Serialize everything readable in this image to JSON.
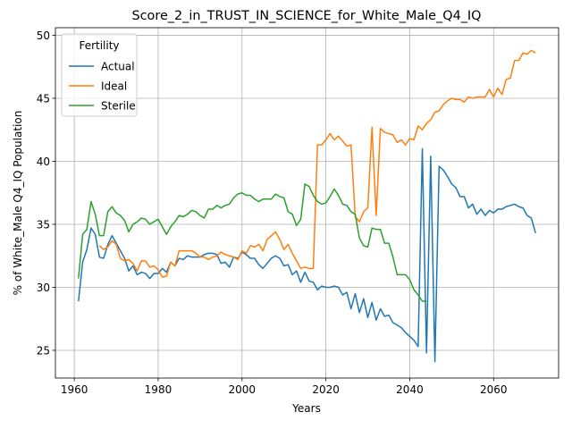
{
  "chart_data": {
    "type": "line",
    "title": "Score_2_in_TRUST_IN_SCIENCE_for_White_Male_Q4_IQ",
    "xlabel": "Years",
    "ylabel": "% of White_Male Q4_IQ Population",
    "legend_title": "Fertility",
    "legend": "upper left",
    "grid": true,
    "xlim": [
      1955.5,
      2075.5
    ],
    "xticks": [
      1960,
      1980,
      2000,
      2020,
      2040,
      2060
    ],
    "ylim": [
      22.8,
      50.6
    ],
    "yticks": [
      25,
      30,
      35,
      40,
      45,
      50
    ],
    "x": [
      1961,
      1962,
      1963,
      1964,
      1965,
      1966,
      1967,
      1968,
      1969,
      1970,
      1971,
      1972,
      1973,
      1974,
      1975,
      1976,
      1977,
      1978,
      1979,
      1980,
      1981,
      1982,
      1983,
      1984,
      1985,
      1986,
      1987,
      1988,
      1989,
      1990,
      1991,
      1992,
      1993,
      1994,
      1995,
      1996,
      1997,
      1998,
      1999,
      2000,
      2001,
      2002,
      2003,
      2004,
      2005,
      2006,
      2007,
      2008,
      2009,
      2010,
      2011,
      2012,
      2013,
      2014,
      2015,
      2016,
      2017,
      2018,
      2019,
      2020,
      2021,
      2022,
      2023,
      2024,
      2025,
      2026,
      2027,
      2028,
      2029,
      2030,
      2031,
      2032,
      2033,
      2034,
      2035,
      2036,
      2037,
      2038,
      2039,
      2040,
      2041,
      2042,
      2043,
      2044,
      2045,
      2046,
      2047,
      2048,
      2049,
      2050,
      2051,
      2052,
      2053,
      2054,
      2055,
      2056,
      2057,
      2058,
      2059,
      2060,
      2061,
      2062,
      2063,
      2064,
      2065,
      2066,
      2067,
      2068,
      2069,
      2070
    ],
    "series": [
      {
        "name": "Actual",
        "color": "#1f77b4",
        "values": [
          28.9,
          32.0,
          33.0,
          34.7,
          34.2,
          32.4,
          32.3,
          33.4,
          34.1,
          33.5,
          32.9,
          32.3,
          31.3,
          31.7,
          31.0,
          31.2,
          31.1,
          30.7,
          31.1,
          31.1,
          31.5,
          31.2,
          32.0,
          31.7,
          32.3,
          32.2,
          32.5,
          32.4,
          32.4,
          32.4,
          32.6,
          32.7,
          32.7,
          32.6,
          31.9,
          32.0,
          31.6,
          32.4,
          32.3,
          32.8,
          32.6,
          32.3,
          32.3,
          31.8,
          31.5,
          31.9,
          32.3,
          32.5,
          32.3,
          31.7,
          31.8,
          31.0,
          31.3,
          30.4,
          31.2,
          30.5,
          30.4,
          29.8,
          30.1,
          30.0,
          30.0,
          30.1,
          30.0,
          29.4,
          29.6,
          28.3,
          29.5,
          28.0,
          29.1,
          27.6,
          28.8,
          27.4,
          28.3,
          27.7,
          27.8,
          27.2,
          27.0,
          26.8,
          26.4,
          26.1,
          25.8,
          25.3,
          41.0,
          24.8,
          40.4,
          24.1,
          39.6,
          39.3,
          38.8,
          38.2,
          37.9,
          37.2,
          37.2,
          36.3,
          36.6,
          35.8,
          36.2,
          35.7,
          36.1,
          35.9,
          36.2,
          36.2,
          36.4,
          36.5,
          36.6,
          36.4,
          36.3,
          35.7,
          35.5,
          34.3
        ]
      },
      {
        "name": "Ideal",
        "color": "#ff7f0e",
        "values": [
          null,
          null,
          null,
          null,
          null,
          33.3,
          33.0,
          33.2,
          33.7,
          33.4,
          32.3,
          32.1,
          32.2,
          31.9,
          31.3,
          32.1,
          32.1,
          31.6,
          31.7,
          31.4,
          30.8,
          30.9,
          32.0,
          31.7,
          32.9,
          32.9,
          32.9,
          32.9,
          32.7,
          32.4,
          32.4,
          32.2,
          32.4,
          32.5,
          32.8,
          32.6,
          32.5,
          32.4,
          32.2,
          32.9,
          32.7,
          33.3,
          33.2,
          33.4,
          32.9,
          33.8,
          34.1,
          34.4,
          33.8,
          33.0,
          33.4,
          32.7,
          32.1,
          31.5,
          31.6,
          31.5,
          31.5,
          41.3,
          41.3,
          41.7,
          42.2,
          41.7,
          42.0,
          41.6,
          41.2,
          41.3,
          35.6,
          35.2,
          36.0,
          36.3,
          42.7,
          35.7,
          42.6,
          42.3,
          42.2,
          42.1,
          41.5,
          41.7,
          41.3,
          41.8,
          41.7,
          42.8,
          42.5,
          43.0,
          43.3,
          43.9,
          44.0,
          44.5,
          44.8,
          45.0,
          44.9,
          44.9,
          44.7,
          45.1,
          45.0,
          45.1,
          45.1,
          45.1,
          45.7,
          45.1,
          45.8,
          45.3,
          46.5,
          46.6,
          48.0,
          48.0,
          48.6,
          48.5,
          48.8,
          48.6
        ]
      },
      {
        "name": "Sterile",
        "color": "#2ca02c",
        "values": [
          30.7,
          34.2,
          34.6,
          36.8,
          35.8,
          34.1,
          34.1,
          36.0,
          36.4,
          35.9,
          35.7,
          35.3,
          34.4,
          35.0,
          35.2,
          35.5,
          35.4,
          35.0,
          35.2,
          35.4,
          34.8,
          34.2,
          34.8,
          35.2,
          35.7,
          35.6,
          35.8,
          36.1,
          36.0,
          35.7,
          35.5,
          36.2,
          36.2,
          36.5,
          36.3,
          36.5,
          36.6,
          37.1,
          37.4,
          37.5,
          37.3,
          37.3,
          37.0,
          36.8,
          37.0,
          37.0,
          37.0,
          37.4,
          37.2,
          37.1,
          36.0,
          35.8,
          34.9,
          35.4,
          38.2,
          38.0,
          37.3,
          36.8,
          36.6,
          36.7,
          37.2,
          37.8,
          37.3,
          36.6,
          36.5,
          36.0,
          35.8,
          33.9,
          33.3,
          33.2,
          34.7,
          34.6,
          34.6,
          33.5,
          33.5,
          32.4,
          31.0,
          31.0,
          31.0,
          30.6,
          29.8,
          29.4,
          28.9,
          28.9,
          null,
          null,
          null,
          null,
          null,
          null,
          null,
          null,
          null,
          null,
          null,
          null,
          null,
          null,
          null,
          null,
          null,
          null,
          null,
          null,
          null,
          null,
          null,
          null,
          null,
          null
        ]
      }
    ]
  }
}
